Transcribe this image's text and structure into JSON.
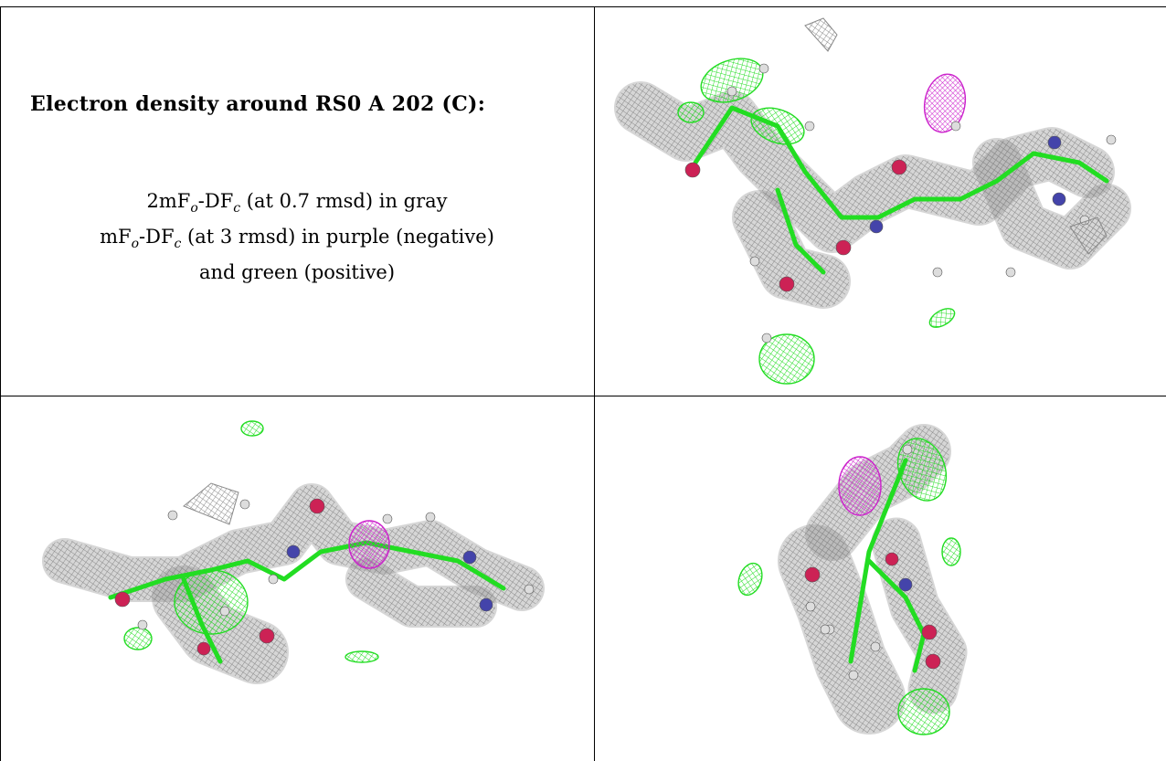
{
  "title": "Electron density around RS0 A 202 (C):",
  "legend": {
    "line1": {
      "pre": "2mF",
      "sub1": "o",
      "mid": "-DF",
      "sub2": "c",
      "post": " (at 0.7 rmsd) in gray"
    },
    "line2": {
      "pre": "mF",
      "sub1": "o",
      "mid": "-DF",
      "sub2": "c",
      "post": " (at 3 rmsd) in purple (negative)"
    },
    "line3": "and green (positive)"
  },
  "colors": {
    "gray_mesh": "#8a8a8a",
    "green_mesh": "#22dd22",
    "purple_mesh": "#cc22cc",
    "oxygen": "#cc2255",
    "nitrogen": "#4444aa",
    "hydrogen": "#dddddd"
  },
  "panels": [
    {
      "name": "view-1"
    },
    {
      "name": "view-2"
    },
    {
      "name": "view-3"
    }
  ]
}
